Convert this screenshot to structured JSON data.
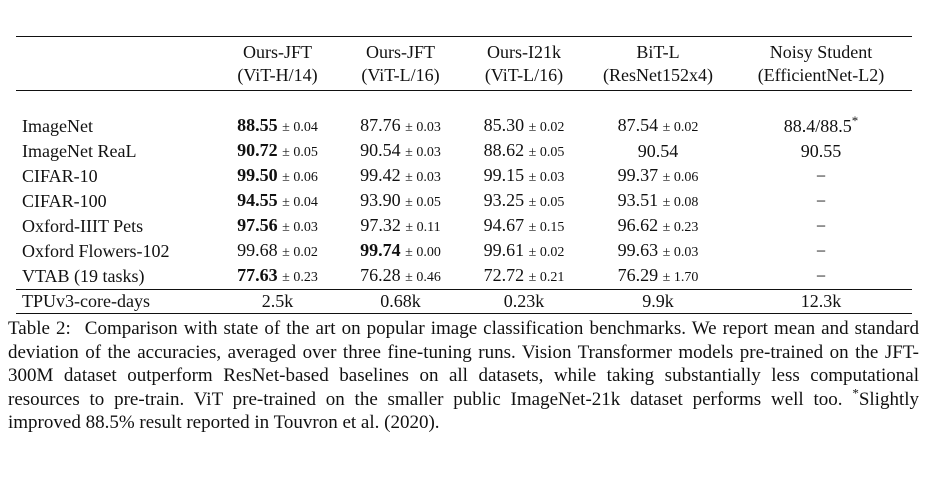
{
  "table": {
    "header_row1": [
      "",
      "Ours-JFT",
      "Ours-JFT",
      "Ours-I21k",
      "BiT-L",
      "Noisy Student"
    ],
    "header_row2": [
      "",
      "(ViT-H/14)",
      "(ViT-L/16)",
      "(ViT-L/16)",
      "(ResNet152x4)",
      "(EfficientNet-L2)"
    ],
    "rows": [
      {
        "dataset": "ImageNet",
        "v1": "88.55",
        "s1": "± 0.04",
        "v2": "87.76",
        "s2": "± 0.03",
        "v3": "85.30",
        "s3": "± 0.02",
        "v4": "87.54",
        "s4": "± 0.02",
        "v5": "88.4/88.5",
        "v5_mark": "*"
      },
      {
        "dataset": "ImageNet ReaL",
        "v1": "90.72",
        "s1": "± 0.05",
        "v2": "90.54",
        "s2": "± 0.03",
        "v3": "88.62",
        "s3": "± 0.05",
        "v4": "90.54",
        "s4": "",
        "v5": "90.55",
        "v5_mark": ""
      },
      {
        "dataset": "CIFAR-10",
        "v1": "99.50",
        "s1": "± 0.06",
        "v2": "99.42",
        "s2": "± 0.03",
        "v3": "99.15",
        "s3": "± 0.03",
        "v4": "99.37",
        "s4": "± 0.06",
        "v5": "−",
        "v5_mark": ""
      },
      {
        "dataset": "CIFAR-100",
        "v1": "94.55",
        "s1": "± 0.04",
        "v2": "93.90",
        "s2": "± 0.05",
        "v3": "93.25",
        "s3": "± 0.05",
        "v4": "93.51",
        "s4": "± 0.08",
        "v5": "−",
        "v5_mark": ""
      },
      {
        "dataset": "Oxford-IIIT Pets",
        "v1": "97.56",
        "s1": "± 0.03",
        "v2": "97.32",
        "s2": "± 0.11",
        "v3": "94.67",
        "s3": "± 0.15",
        "v4": "96.62",
        "s4": "± 0.23",
        "v5": "−",
        "v5_mark": ""
      },
      {
        "dataset": "Oxford Flowers-102",
        "v1": "99.68",
        "s1": "± 0.02",
        "v2": "99.74",
        "s2": "± 0.00",
        "v3": "99.61",
        "s3": "± 0.02",
        "v4": "99.63",
        "s4": "± 0.03",
        "v5": "−",
        "v5_mark": ""
      },
      {
        "dataset": "VTAB (19 tasks)",
        "v1": "77.63",
        "s1": "± 0.23",
        "v2": "76.28",
        "s2": "± 0.46",
        "v3": "72.72",
        "s3": "± 0.21",
        "v4": "76.29",
        "s4": "± 1.70",
        "v5": "−",
        "v5_mark": ""
      }
    ],
    "summary": {
      "label": "TPUv3-core-days",
      "values": [
        "2.5k",
        "0.68k",
        "0.23k",
        "9.9k",
        "12.3k"
      ]
    }
  },
  "caption": {
    "label": "Table 2:",
    "text_before_mark": "Comparison with state of the art on popular image classification benchmarks. We report mean and standard deviation of the accuracies, averaged over three fine-tuning runs. Vision Transformer models pre-trained on the JFT-300M dataset outperform ResNet-based baselines on all datasets, while taking substantially less computational resources to pre-train. ViT pre-trained on the smaller public ImageNet-21k dataset performs well too.",
    "mark": "*",
    "text_after_mark": "Slightly improved 88.5% result reported in Touvron et al. (2020)."
  }
}
